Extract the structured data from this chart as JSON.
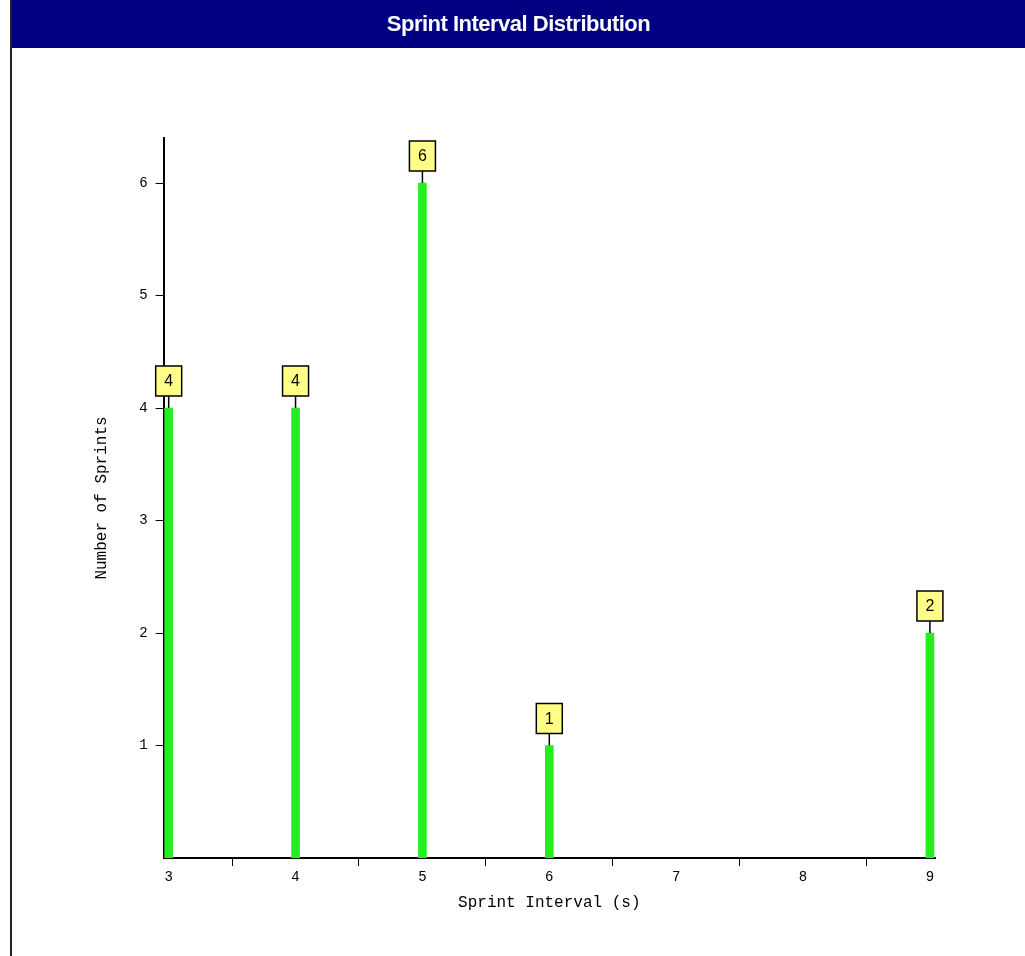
{
  "chart_data": {
    "type": "bar",
    "title": "Sprint Interval Distribution",
    "xlabel": "Sprint Interval (s)",
    "ylabel": "Number of Sprints",
    "x": [
      3,
      4,
      5,
      6,
      9
    ],
    "values": [
      4,
      4,
      6,
      1,
      2
    ],
    "color": "#22ee22",
    "xlim": [
      2.96,
      9.04
    ],
    "xticks": [
      3,
      4,
      5,
      6,
      7,
      8,
      9
    ],
    "ylim": [
      0,
      6.4
    ],
    "yticks": [
      1,
      2,
      3,
      4,
      5,
      6
    ],
    "data_labels": true
  }
}
